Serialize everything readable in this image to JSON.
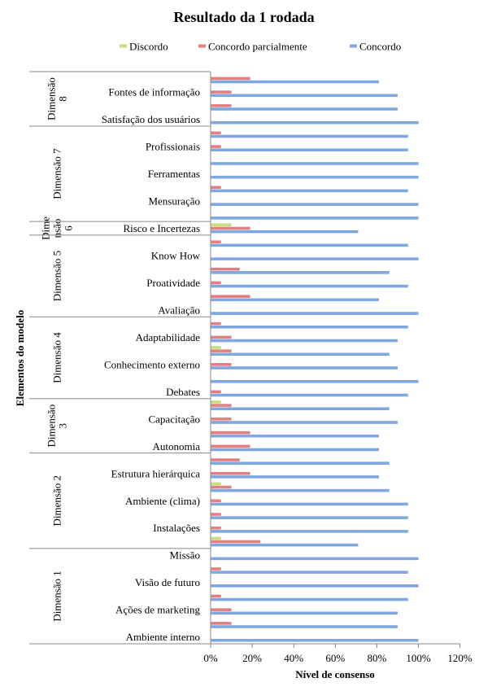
{
  "chart_data": {
    "type": "bar",
    "orientation": "horizontal",
    "title": "Resultado da 1 rodada",
    "xlabel": "Nível de consenso",
    "ylabel": "Elementos do modelo",
    "xlim": [
      0,
      1.2
    ],
    "xticks": [
      "0%",
      "20%",
      "40%",
      "60%",
      "80%",
      "100%",
      "120%"
    ],
    "legend_position": "top",
    "series": [
      {
        "name": "Discordo",
        "color": "#c4e07a"
      },
      {
        "name": "Concordo parcialmente",
        "color": "#e47f7f"
      },
      {
        "name": "Concordo",
        "color": "#7fa7e0"
      }
    ],
    "groups": [
      {
        "label": "Dimensão 8",
        "label_lines": [
          "Dimensão",
          "8"
        ],
        "rows": [
          {
            "label": "",
            "values": [
              0,
              0.19,
              0.81
            ]
          },
          {
            "label": "Fontes de informação",
            "values": [
              0,
              0.1,
              0.9
            ]
          },
          {
            "label": "",
            "values": [
              0,
              0.1,
              0.9
            ]
          },
          {
            "label": "Satisfação dos usuários",
            "values": [
              0,
              0,
              1.0
            ]
          }
        ]
      },
      {
        "label": "Dimensão 7",
        "label_lines": [
          "Dimensão 7"
        ],
        "rows": [
          {
            "label": "",
            "values": [
              0,
              0.05,
              0.95
            ]
          },
          {
            "label": "Profissionais",
            "values": [
              0,
              0.05,
              0.95
            ]
          },
          {
            "label": "",
            "values": [
              0,
              0,
              1.0
            ]
          },
          {
            "label": "Ferramentas",
            "values": [
              0,
              0,
              1.0
            ]
          },
          {
            "label": "",
            "values": [
              0,
              0.05,
              0.95
            ]
          },
          {
            "label": "Mensuração",
            "values": [
              0,
              0,
              1.0
            ]
          },
          {
            "label": "",
            "values": [
              0,
              0,
              1.0
            ]
          }
        ]
      },
      {
        "label": "Dimensão 6",
        "label_lines": [
          "Dime",
          "nsão",
          "6"
        ],
        "rows": [
          {
            "label": "Risco e Incertezas",
            "values": [
              0.1,
              0.19,
              0.71
            ]
          }
        ]
      },
      {
        "label": "Dimensão 5",
        "label_lines": [
          "Dimensão 5"
        ],
        "rows": [
          {
            "label": "",
            "values": [
              0,
              0.05,
              0.95
            ]
          },
          {
            "label": "Know How",
            "values": [
              0,
              0,
              1.0
            ]
          },
          {
            "label": "",
            "values": [
              0,
              0.14,
              0.86
            ]
          },
          {
            "label": "Proatividade",
            "values": [
              0,
              0.05,
              0.95
            ]
          },
          {
            "label": "",
            "values": [
              0,
              0.19,
              0.81
            ]
          },
          {
            "label": "Avaliação",
            "values": [
              0,
              0,
              1.0
            ]
          }
        ]
      },
      {
        "label": "Dimensão 4",
        "label_lines": [
          "Dimensão 4"
        ],
        "rows": [
          {
            "label": "",
            "values": [
              0,
              0.05,
              0.95
            ]
          },
          {
            "label": "Adaptabilidade",
            "values": [
              0,
              0.1,
              0.9
            ]
          },
          {
            "label": "",
            "values": [
              0.05,
              0.1,
              0.86
            ]
          },
          {
            "label": "Conhecimento externo",
            "values": [
              0,
              0.1,
              0.9
            ]
          },
          {
            "label": "",
            "values": [
              0,
              0,
              1.0
            ]
          },
          {
            "label": "Debates",
            "values": [
              0,
              0.05,
              0.95
            ]
          }
        ]
      },
      {
        "label": "Dimensão 3",
        "label_lines": [
          "Dimensão",
          "3"
        ],
        "rows": [
          {
            "label": "",
            "values": [
              0.05,
              0.1,
              0.86
            ]
          },
          {
            "label": "Capacitação",
            "values": [
              0,
              0.1,
              0.9
            ]
          },
          {
            "label": "",
            "values": [
              0,
              0.19,
              0.81
            ]
          },
          {
            "label": "Autonomia",
            "values": [
              0,
              0.19,
              0.81
            ]
          }
        ]
      },
      {
        "label": "Dimensão 2",
        "label_lines": [
          "Dimensão 2"
        ],
        "rows": [
          {
            "label": "",
            "values": [
              0,
              0.14,
              0.86
            ]
          },
          {
            "label": "Estrutura hierárquica",
            "values": [
              0,
              0.19,
              0.81
            ]
          },
          {
            "label": "",
            "values": [
              0.05,
              0.1,
              0.86
            ]
          },
          {
            "label": "Ambiente (clima)",
            "values": [
              0,
              0.05,
              0.95
            ]
          },
          {
            "label": "",
            "values": [
              0,
              0.05,
              0.95
            ]
          },
          {
            "label": "Instalações",
            "values": [
              0,
              0.05,
              0.95
            ]
          },
          {
            "label": "",
            "values": [
              0.05,
              0.24,
              0.71
            ]
          }
        ]
      },
      {
        "label": "Dimensão 1",
        "label_lines": [
          "Dimensão 1"
        ],
        "rows": [
          {
            "label": "Missão",
            "values": [
              0,
              0,
              1.0
            ]
          },
          {
            "label": "",
            "values": [
              0,
              0.05,
              0.95
            ]
          },
          {
            "label": "Visão de futuro",
            "values": [
              0,
              0,
              1.0
            ]
          },
          {
            "label": "",
            "values": [
              0,
              0.05,
              0.95
            ]
          },
          {
            "label": "Ações de marketing",
            "values": [
              0,
              0.1,
              0.9
            ]
          },
          {
            "label": "",
            "values": [
              0,
              0.1,
              0.9
            ]
          },
          {
            "label": "Ambiente interno",
            "values": [
              0,
              0,
              1.0
            ]
          }
        ]
      }
    ]
  }
}
